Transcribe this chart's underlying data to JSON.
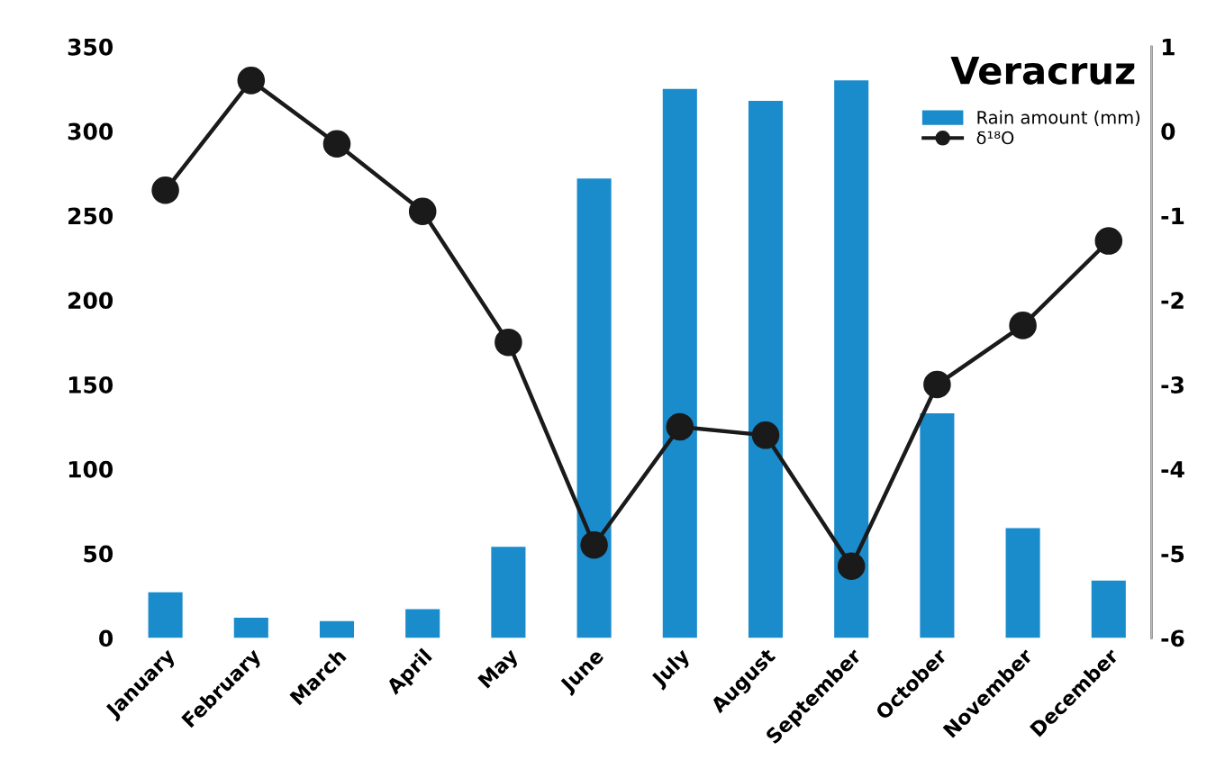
{
  "chart_data": {
    "type": "bar",
    "title": "Veracruz",
    "categories": [
      "January",
      "February",
      "March",
      "April",
      "May",
      "June",
      "July",
      "August",
      "September",
      "October",
      "November",
      "December"
    ],
    "series": [
      {
        "name": "Rain amount (mm)",
        "color": "#1a8ccc",
        "values": [
          27,
          12,
          10,
          17,
          54,
          272,
          325,
          318,
          330,
          133,
          65,
          34
        ]
      },
      {
        "name": "δ¹⁸O",
        "type": "line",
        "axis": "y2",
        "color": "#1a1a1a",
        "marker": "circle",
        "values": [
          -0.7,
          0.6,
          -0.15,
          -0.95,
          -2.5,
          -4.9,
          -3.5,
          -3.6,
          -5.15,
          -3.0,
          -2.3,
          -1.3
        ]
      }
    ],
    "ylim": [
      0,
      350
    ],
    "yticks": [
      0,
      50,
      100,
      150,
      200,
      250,
      300,
      350
    ],
    "y2lim": [
      -6,
      1
    ],
    "y2ticks": [
      -6,
      -5,
      -4,
      -3,
      -2,
      -1,
      0,
      1
    ],
    "grid": false,
    "legend": "top right"
  }
}
